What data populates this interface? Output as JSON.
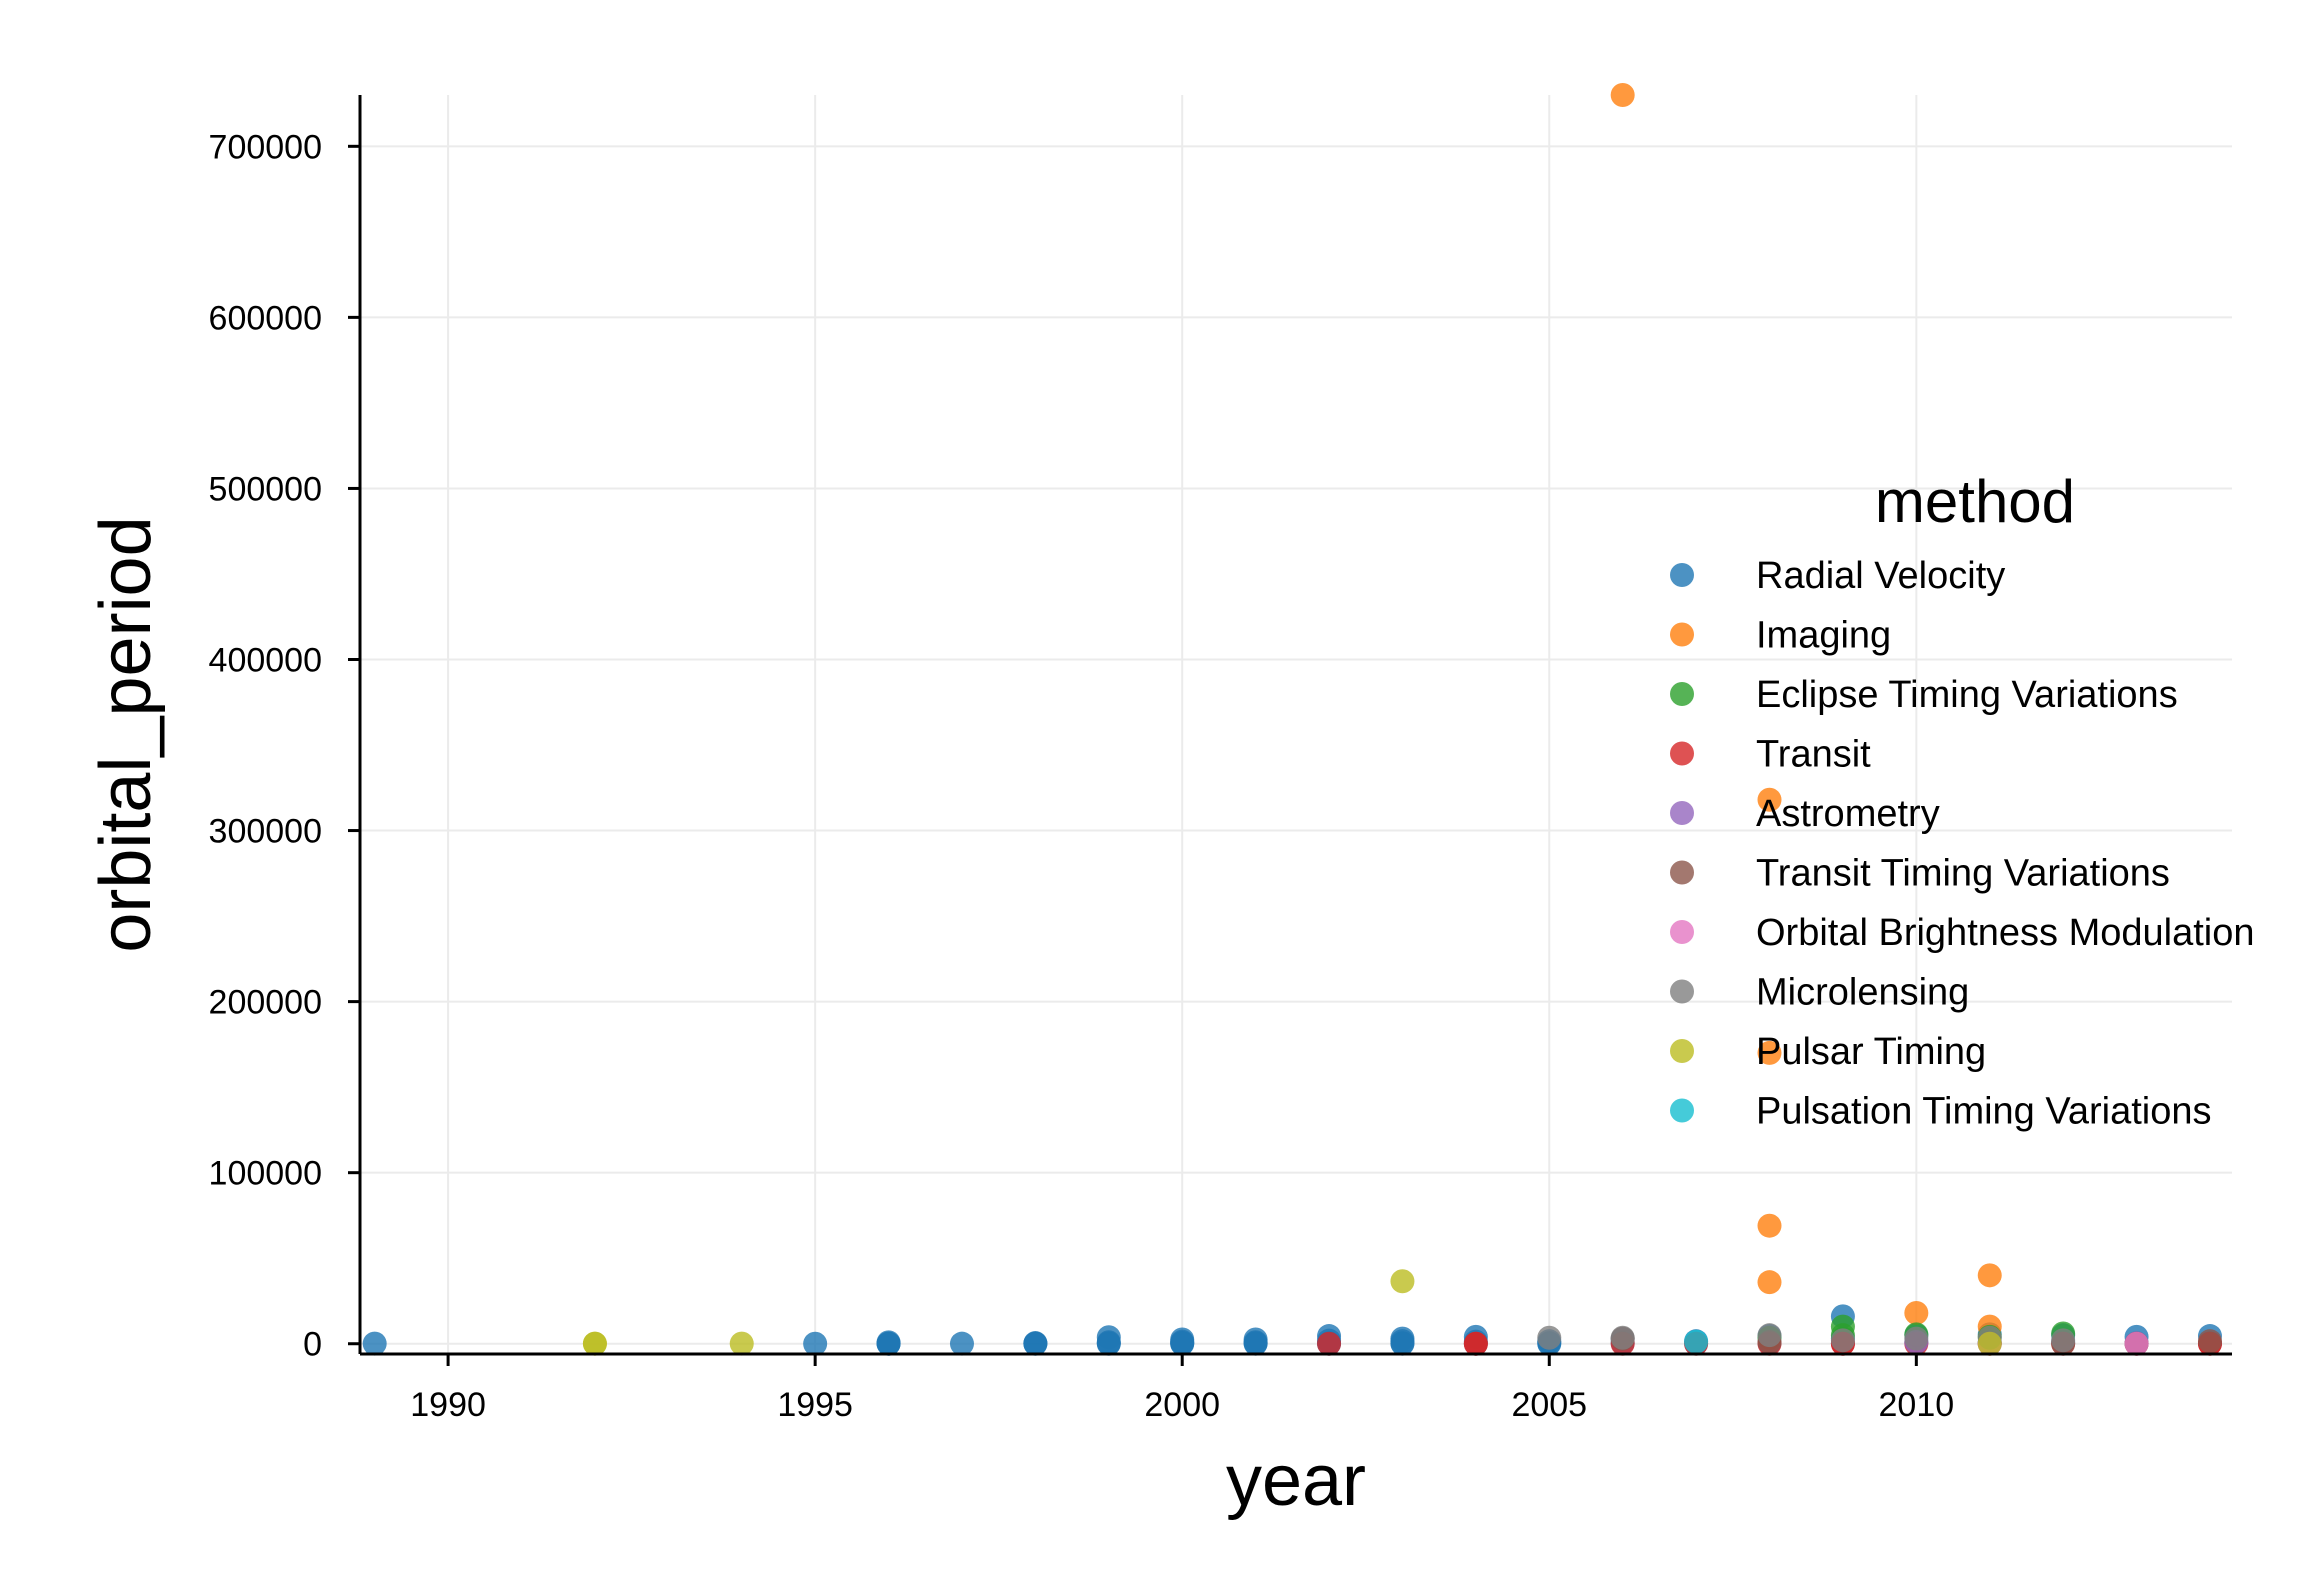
{
  "chart_data": {
    "type": "scatter",
    "xlabel": "year",
    "ylabel": "orbital_period",
    "xlim": [
      1988.8,
      2014.3
    ],
    "ylim": [
      -6000,
      730000
    ],
    "xticks": [
      1990,
      1995,
      2000,
      2005,
      2010
    ],
    "yticks": [
      0,
      100000,
      200000,
      300000,
      400000,
      500000,
      600000,
      700000
    ],
    "grid": true,
    "legend": {
      "title": "method",
      "placement": "right"
    },
    "series": [
      {
        "name": "Radial Velocity",
        "color": "#1f77b4",
        "points": [
          [
            1989,
            84
          ],
          [
            1995,
            4
          ],
          [
            1996,
            800
          ],
          [
            1996,
            120
          ],
          [
            1996,
            15
          ],
          [
            1996,
            3
          ],
          [
            1997,
            40
          ],
          [
            1998,
            400
          ],
          [
            1998,
            60
          ],
          [
            1998,
            5
          ],
          [
            1999,
            3800
          ],
          [
            1999,
            900
          ],
          [
            1999,
            200
          ],
          [
            1999,
            3
          ],
          [
            2000,
            2500
          ],
          [
            2000,
            1200
          ],
          [
            2000,
            500
          ],
          [
            2000,
            100
          ],
          [
            2000,
            5
          ],
          [
            2001,
            2500
          ],
          [
            2001,
            900
          ],
          [
            2001,
            300
          ],
          [
            2001,
            10
          ],
          [
            2002,
            4500
          ],
          [
            2002,
            1800
          ],
          [
            2002,
            300
          ],
          [
            2002,
            10
          ],
          [
            2003,
            3000
          ],
          [
            2003,
            1500
          ],
          [
            2003,
            300
          ],
          [
            2003,
            10
          ],
          [
            2004,
            4000
          ],
          [
            2004,
            1200
          ],
          [
            2004,
            9
          ],
          [
            2005,
            1500
          ],
          [
            2005,
            400
          ],
          [
            2005,
            4
          ],
          [
            2006,
            2800
          ],
          [
            2006,
            400
          ],
          [
            2007,
            1500
          ],
          [
            2007,
            100
          ],
          [
            2008,
            4500
          ],
          [
            2008,
            500
          ],
          [
            2009,
            16000
          ],
          [
            2009,
            3000
          ],
          [
            2009,
            300
          ],
          [
            2010,
            5000
          ],
          [
            2010,
            800
          ],
          [
            2011,
            5500
          ],
          [
            2011,
            1000
          ],
          [
            2011,
            100
          ],
          [
            2012,
            5000
          ],
          [
            2012,
            1000
          ],
          [
            2013,
            4000
          ],
          [
            2013,
            300
          ],
          [
            2014,
            4500
          ],
          [
            2014,
            200
          ]
        ]
      },
      {
        "name": "Imaging",
        "color": "#ff7f0e",
        "points": [
          [
            2006,
            730000
          ],
          [
            2008,
            318000
          ],
          [
            2008,
            170000
          ],
          [
            2008,
            69000
          ],
          [
            2008,
            36000
          ],
          [
            2010,
            18000
          ],
          [
            2011,
            40000
          ],
          [
            2011,
            10000
          ]
        ]
      },
      {
        "name": "Eclipse Timing Variations",
        "color": "#2ca02c",
        "points": [
          [
            2008,
            3500
          ],
          [
            2009,
            10000
          ],
          [
            2009,
            5000
          ],
          [
            2010,
            5500
          ],
          [
            2011,
            4000
          ],
          [
            2012,
            6000
          ]
        ]
      },
      {
        "name": "Transit",
        "color": "#d62728",
        "points": [
          [
            2002,
            2
          ],
          [
            2004,
            3
          ],
          [
            2004,
            1
          ],
          [
            2006,
            3
          ],
          [
            2007,
            4
          ],
          [
            2008,
            3
          ],
          [
            2009,
            4
          ],
          [
            2009,
            2
          ],
          [
            2010,
            3
          ],
          [
            2011,
            10
          ],
          [
            2012,
            5
          ],
          [
            2013,
            4
          ],
          [
            2014,
            10
          ],
          [
            2014,
            2
          ]
        ]
      },
      {
        "name": "Astrometry",
        "color": "#9467bd",
        "points": [
          [
            2010,
            1016
          ],
          [
            2013,
            246
          ]
        ]
      },
      {
        "name": "Transit Timing Variations",
        "color": "#8c564b",
        "points": [
          [
            2011,
            160
          ],
          [
            2012,
            57
          ],
          [
            2013,
            23
          ],
          [
            2014,
            1500
          ],
          [
            2006,
            3000
          ],
          [
            2008,
            1000
          ]
        ]
      },
      {
        "name": "Orbital Brightness Modulation",
        "color": "#e377c2",
        "points": [
          [
            2011,
            1
          ],
          [
            2013,
            0.3
          ]
        ]
      },
      {
        "name": "Microlensing",
        "color": "#7f7f7f",
        "points": [
          [
            2005,
            3500
          ],
          [
            2006,
            3500
          ],
          [
            2008,
            5000
          ],
          [
            2009,
            2000
          ],
          [
            2010,
            3000
          ],
          [
            2011,
            3500
          ],
          [
            2012,
            2000
          ]
        ]
      },
      {
        "name": "Pulsar Timing",
        "color": "#bcbd22",
        "points": [
          [
            1992,
            25
          ],
          [
            1992,
            66
          ],
          [
            1994,
            98
          ],
          [
            2003,
            36525
          ],
          [
            2011,
            0.1
          ]
        ]
      },
      {
        "name": "Pulsation Timing Variations",
        "color": "#17becf",
        "points": [
          [
            2007,
            1170
          ]
        ]
      }
    ]
  }
}
